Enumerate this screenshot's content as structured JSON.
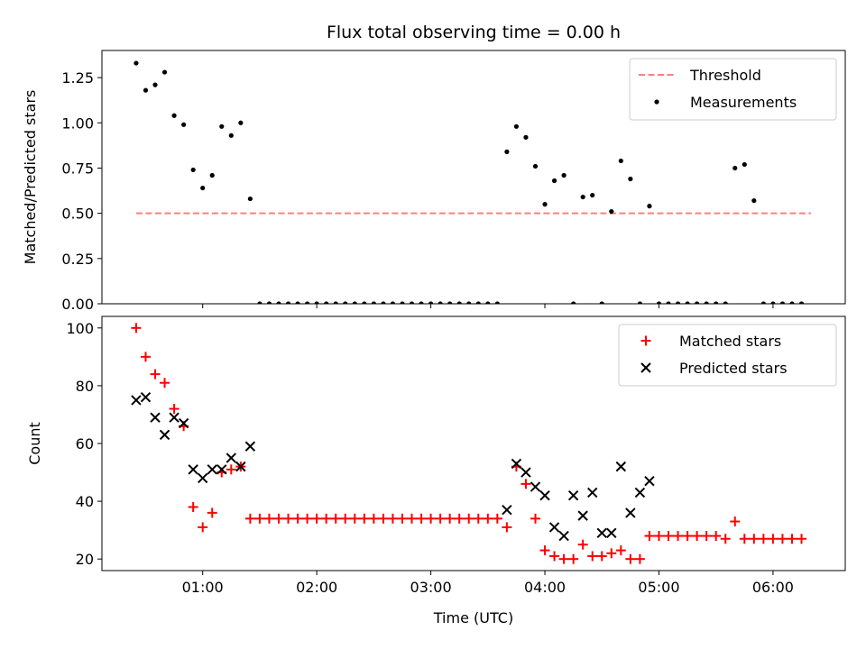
{
  "chart_data": {
    "title": "Flux total observing time = 0.00 h",
    "x_axis": {
      "label": "Time (UTC)",
      "range": [
        "00:07",
        "06:38"
      ],
      "ticks": [
        "01:00",
        "02:00",
        "03:00",
        "04:00",
        "05:00",
        "06:00"
      ]
    },
    "panels": [
      {
        "type": "scatter",
        "ylabel": "Matched/Predicted stars",
        "ylim": [
          0,
          1.4
        ],
        "yticks": [
          "0.00",
          "0.25",
          "0.50",
          "0.75",
          "1.00",
          "1.25"
        ],
        "legend_position": "top-right",
        "series": [
          {
            "name": "Threshold",
            "kind": "dashed-line",
            "color": "#ff7f7f",
            "x": [
              "00:25",
              "06:20"
            ],
            "y": [
              0.5,
              0.5
            ]
          },
          {
            "name": "Measurements",
            "kind": "dot",
            "color": "#000000",
            "x": [
              "00:25",
              "00:30",
              "00:35",
              "00:40",
              "00:45",
              "00:50",
              "00:55",
              "01:00",
              "01:05",
              "01:10",
              "01:15",
              "01:20",
              "01:25",
              "01:30",
              "01:35",
              "01:40",
              "01:45",
              "01:50",
              "01:55",
              "02:00",
              "02:05",
              "02:10",
              "02:15",
              "02:20",
              "02:25",
              "02:30",
              "02:35",
              "02:40",
              "02:45",
              "02:50",
              "02:55",
              "03:00",
              "03:05",
              "03:10",
              "03:15",
              "03:20",
              "03:25",
              "03:30",
              "03:35",
              "03:40",
              "03:45",
              "03:50",
              "03:55",
              "04:00",
              "04:05",
              "04:10",
              "04:15",
              "04:20",
              "04:25",
              "04:30",
              "04:35",
              "04:40",
              "04:45",
              "04:50",
              "04:55",
              "05:00",
              "05:05",
              "05:10",
              "05:15",
              "05:20",
              "05:25",
              "05:30",
              "05:35",
              "05:40",
              "05:45",
              "05:50",
              "05:55",
              "06:00",
              "06:05",
              "06:10",
              "06:15"
            ],
            "y": [
              1.33,
              1.18,
              1.21,
              1.28,
              1.04,
              0.99,
              0.74,
              0.64,
              0.71,
              0.98,
              0.93,
              1.0,
              0.58,
              0,
              0,
              0,
              0,
              0,
              0,
              0,
              0,
              0,
              0,
              0,
              0,
              0,
              0,
              0,
              0,
              0,
              0,
              0,
              0,
              0,
              0,
              0,
              0,
              0,
              0,
              0.84,
              0.98,
              0.92,
              0.76,
              0.55,
              0.68,
              0.71,
              0,
              0.59,
              0.6,
              0,
              0.51,
              0.79,
              0.69,
              0,
              0.54,
              0,
              0,
              0,
              0,
              0,
              0,
              0,
              0,
              0.75,
              0.77,
              0.57,
              0,
              0,
              0,
              0,
              0
            ]
          }
        ]
      },
      {
        "type": "scatter",
        "ylabel": "Count",
        "ylim": [
          16,
          104
        ],
        "yticks": [
          "20",
          "40",
          "60",
          "80",
          "100"
        ],
        "legend_position": "top-right",
        "series": [
          {
            "name": "Matched stars",
            "kind": "plus",
            "color": "#ff0000",
            "x": [
              "00:25",
              "00:30",
              "00:35",
              "00:40",
              "00:45",
              "00:50",
              "00:55",
              "01:00",
              "01:05",
              "01:10",
              "01:15",
              "01:20",
              "01:25",
              "01:30",
              "01:35",
              "01:40",
              "01:45",
              "01:50",
              "01:55",
              "02:00",
              "02:05",
              "02:10",
              "02:15",
              "02:20",
              "02:25",
              "02:30",
              "02:35",
              "02:40",
              "02:45",
              "02:50",
              "02:55",
              "03:00",
              "03:05",
              "03:10",
              "03:15",
              "03:20",
              "03:25",
              "03:30",
              "03:35",
              "03:40",
              "03:45",
              "03:50",
              "03:55",
              "04:00",
              "04:05",
              "04:10",
              "04:15",
              "04:20",
              "04:25",
              "04:30",
              "04:35",
              "04:40",
              "04:45",
              "04:50",
              "04:55",
              "05:00",
              "05:05",
              "05:10",
              "05:15",
              "05:20",
              "05:25",
              "05:30",
              "05:35",
              "05:40",
              "05:45",
              "05:50",
              "05:55",
              "06:00",
              "06:05",
              "06:10",
              "06:15"
            ],
            "y": [
              100,
              90,
              84,
              81,
              72,
              66,
              38,
              31,
              36,
              50,
              51,
              52,
              34,
              34,
              34,
              34,
              34,
              34,
              34,
              34,
              34,
              34,
              34,
              34,
              34,
              34,
              34,
              34,
              34,
              34,
              34,
              34,
              34,
              34,
              34,
              34,
              34,
              34,
              34,
              31,
              52,
              46,
              34,
              23,
              21,
              20,
              20,
              25,
              21,
              21,
              22,
              23,
              20,
              20,
              28,
              28,
              28,
              28,
              28,
              28,
              28,
              28,
              27,
              33,
              27,
              27,
              27,
              27,
              27,
              27,
              27
            ]
          },
          {
            "name": "Predicted stars",
            "kind": "cross",
            "color": "#000000",
            "x": [
              "00:25",
              "00:30",
              "00:35",
              "00:40",
              "00:45",
              "00:50",
              "00:55",
              "01:00",
              "01:05",
              "01:10",
              "01:15",
              "01:20",
              "01:25",
              "03:40",
              "03:45",
              "03:50",
              "03:55",
              "04:00",
              "04:05",
              "04:10",
              "04:15",
              "04:20",
              "04:25",
              "04:30",
              "04:35",
              "04:40",
              "04:45",
              "04:50",
              "04:55",
              "05:00",
              "05:05",
              "05:10",
              "05:15",
              "05:20",
              "05:25",
              "05:30",
              "05:35",
              "05:40",
              "05:45",
              "05:50"
            ],
            "y": [
              75,
              76,
              69,
              63,
              69,
              67,
              51,
              48,
              51,
              51,
              55,
              52,
              59,
              37,
              53,
              50,
              45,
              42,
              31,
              28,
              42,
              35,
              43,
              29,
              29,
              52,
              36,
              43,
              47,
              null,
              null,
              null,
              null,
              null,
              null,
              null,
              null,
              null,
              null,
              null
            ]
          }
        ]
      }
    ]
  }
}
